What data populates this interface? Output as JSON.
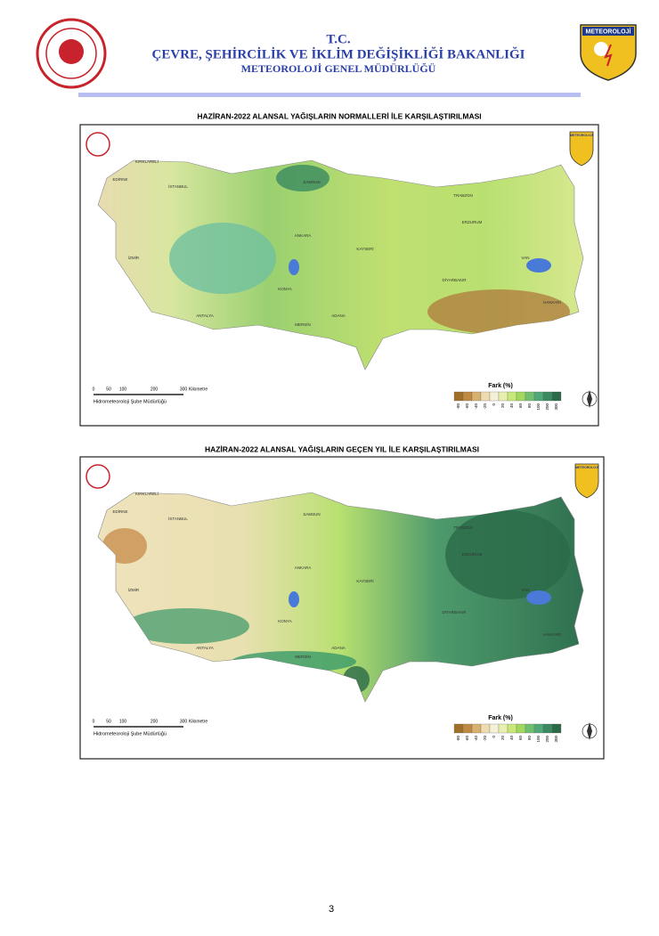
{
  "header": {
    "line1": "T.C.",
    "line2": "ÇEVRE, ŞEHİRCİLİK VE İKLİM DEĞİŞİKLİĞİ BAKANLIĞI",
    "line3": "METEOROLOJİ GENEL MÜDÜRLÜĞÜ",
    "logo_right": "METEOROLOJİ"
  },
  "maps": [
    {
      "title": "HAZİRAN-2022 ALANSAL YAĞIŞLARIN NORMALLERİ İLE KARŞILAŞTIRILMASI",
      "logo": "METEOROLOJİ",
      "cities": [
        "KIRKLARELİ",
        "EDİRNE",
        "İSTANBUL",
        "SAMSUN",
        "ANKARA",
        "KONYA",
        "İZMİR",
        "ANTALYA",
        "ERZURUM",
        "VAN",
        "DİYARBAKIR",
        "TRABZON",
        "KAYSERİ",
        "ADANA",
        "MERSİN",
        "HAKKARİ"
      ],
      "scale": {
        "ticks": [
          "0",
          "50",
          "100",
          "200",
          "300"
        ],
        "unit": "Kilometre",
        "credit": "Hidrometeoroloji Şube Müdürlüğü"
      },
      "legend": {
        "title": "Fark (%)",
        "labels": [
          "-80",
          "-60",
          "-40",
          "-20",
          "0",
          "20",
          "40",
          "60",
          "80",
          "100",
          "200",
          "300"
        ]
      }
    },
    {
      "title": "HAZİRAN-2022 ALANSAL YAĞIŞLARIN GEÇEN YIL İLE KARŞILAŞTIRILMASI",
      "logo": "METEOROLOJİ",
      "cities": [
        "KIRKLARELİ",
        "EDİRNE",
        "İSTANBUL",
        "SAMSUN",
        "ANKARA",
        "KONYA",
        "İZMİR",
        "ANTALYA",
        "ERZURUM",
        "VAN",
        "DİYARBAKIR",
        "TRABZON",
        "KAYSERİ",
        "ADANA",
        "MERSİN",
        "HAKKARİ"
      ],
      "scale": {
        "ticks": [
          "0",
          "50",
          "100",
          "200",
          "300"
        ],
        "unit": "Kilometre",
        "credit": "Hidrometeoroloji Şube Müdürlüğü"
      },
      "legend": {
        "title": "Fark (%)",
        "labels": [
          "-80",
          "-60",
          "-40",
          "-20",
          "0",
          "20",
          "40",
          "60",
          "80",
          "100",
          "200",
          "300"
        ]
      }
    }
  ],
  "page_number": "3"
}
